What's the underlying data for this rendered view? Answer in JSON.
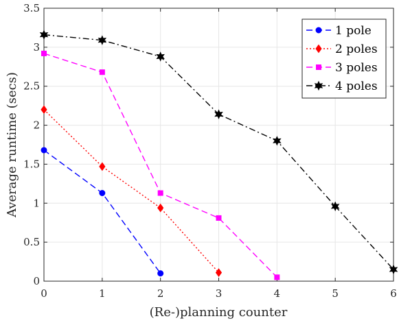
{
  "chart_data": {
    "type": "line",
    "title": "",
    "xlabel": "(Re-)planning counter",
    "ylabel": "Average runtime (secs)",
    "xlim": [
      0,
      6
    ],
    "ylim": [
      0,
      3.5
    ],
    "xticks": [
      0,
      1,
      2,
      3,
      4,
      5,
      6
    ],
    "yticks": [
      0,
      0.5,
      1,
      1.5,
      2,
      2.5,
      3,
      3.5
    ],
    "xtick_labels": [
      "0",
      "1",
      "2",
      "3",
      "4",
      "5",
      "6"
    ],
    "ytick_labels": [
      "0",
      "0.5",
      "1",
      "1.5",
      "2",
      "2.5",
      "3",
      "3.5"
    ],
    "grid": true,
    "legend_position": "top-right",
    "series": [
      {
        "name": "1 pole",
        "color": "#0000ff",
        "line_style": "dashed",
        "marker": "circle",
        "x": [
          0,
          1,
          2
        ],
        "y": [
          1.68,
          1.13,
          0.1
        ]
      },
      {
        "name": "2 poles",
        "color": "#ff0000",
        "line_style": "dotted",
        "marker": "diamond",
        "x": [
          0,
          1,
          2,
          3
        ],
        "y": [
          2.2,
          1.47,
          0.94,
          0.11
        ]
      },
      {
        "name": "3 poles",
        "color": "#ff00ff",
        "line_style": "dashed",
        "marker": "square",
        "x": [
          0,
          1,
          2,
          3,
          4
        ],
        "y": [
          2.92,
          2.68,
          1.13,
          0.81,
          0.05
        ]
      },
      {
        "name": "4 poles",
        "color": "#000000",
        "line_style": "dash-dot",
        "marker": "hexagram",
        "x": [
          0,
          1,
          2,
          3,
          4,
          5,
          6
        ],
        "y": [
          3.16,
          3.09,
          2.88,
          2.14,
          1.8,
          0.96,
          0.15
        ]
      }
    ]
  }
}
